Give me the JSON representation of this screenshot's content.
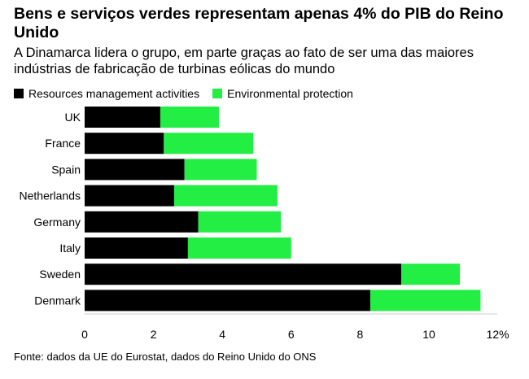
{
  "title": "Bens e serviços verdes representam apenas 4% do PIB do Reino Unido",
  "subtitle": "A Dinamarca lidera o grupo, em parte graças ao fato de ser uma das maiores indústrias de fabricação de turbinas eólicas do mundo",
  "source": "Fonte: dados da UE do Eurostat, dados do Reino Unido do ONS",
  "colors": {
    "resources": "#000000",
    "environmental": "#22ee44"
  },
  "chart_data": {
    "type": "bar",
    "orientation": "horizontal",
    "stacked": true,
    "categories": [
      "UK",
      "France",
      "Spain",
      "Netherlands",
      "Germany",
      "Italy",
      "Sweden",
      "Denmark"
    ],
    "series": [
      {
        "name": "Resources management activities",
        "values": [
          2.2,
          2.3,
          2.9,
          2.6,
          3.3,
          3.0,
          9.2,
          8.3
        ]
      },
      {
        "name": "Environmental protection",
        "values": [
          1.7,
          2.6,
          2.1,
          3.0,
          2.4,
          3.0,
          1.7,
          3.2
        ]
      }
    ],
    "xlim": [
      0,
      12
    ],
    "xticks": [
      "0",
      "2",
      "4",
      "6",
      "8",
      "10",
      "12%"
    ],
    "legend_position": "top-left",
    "grid": false
  }
}
